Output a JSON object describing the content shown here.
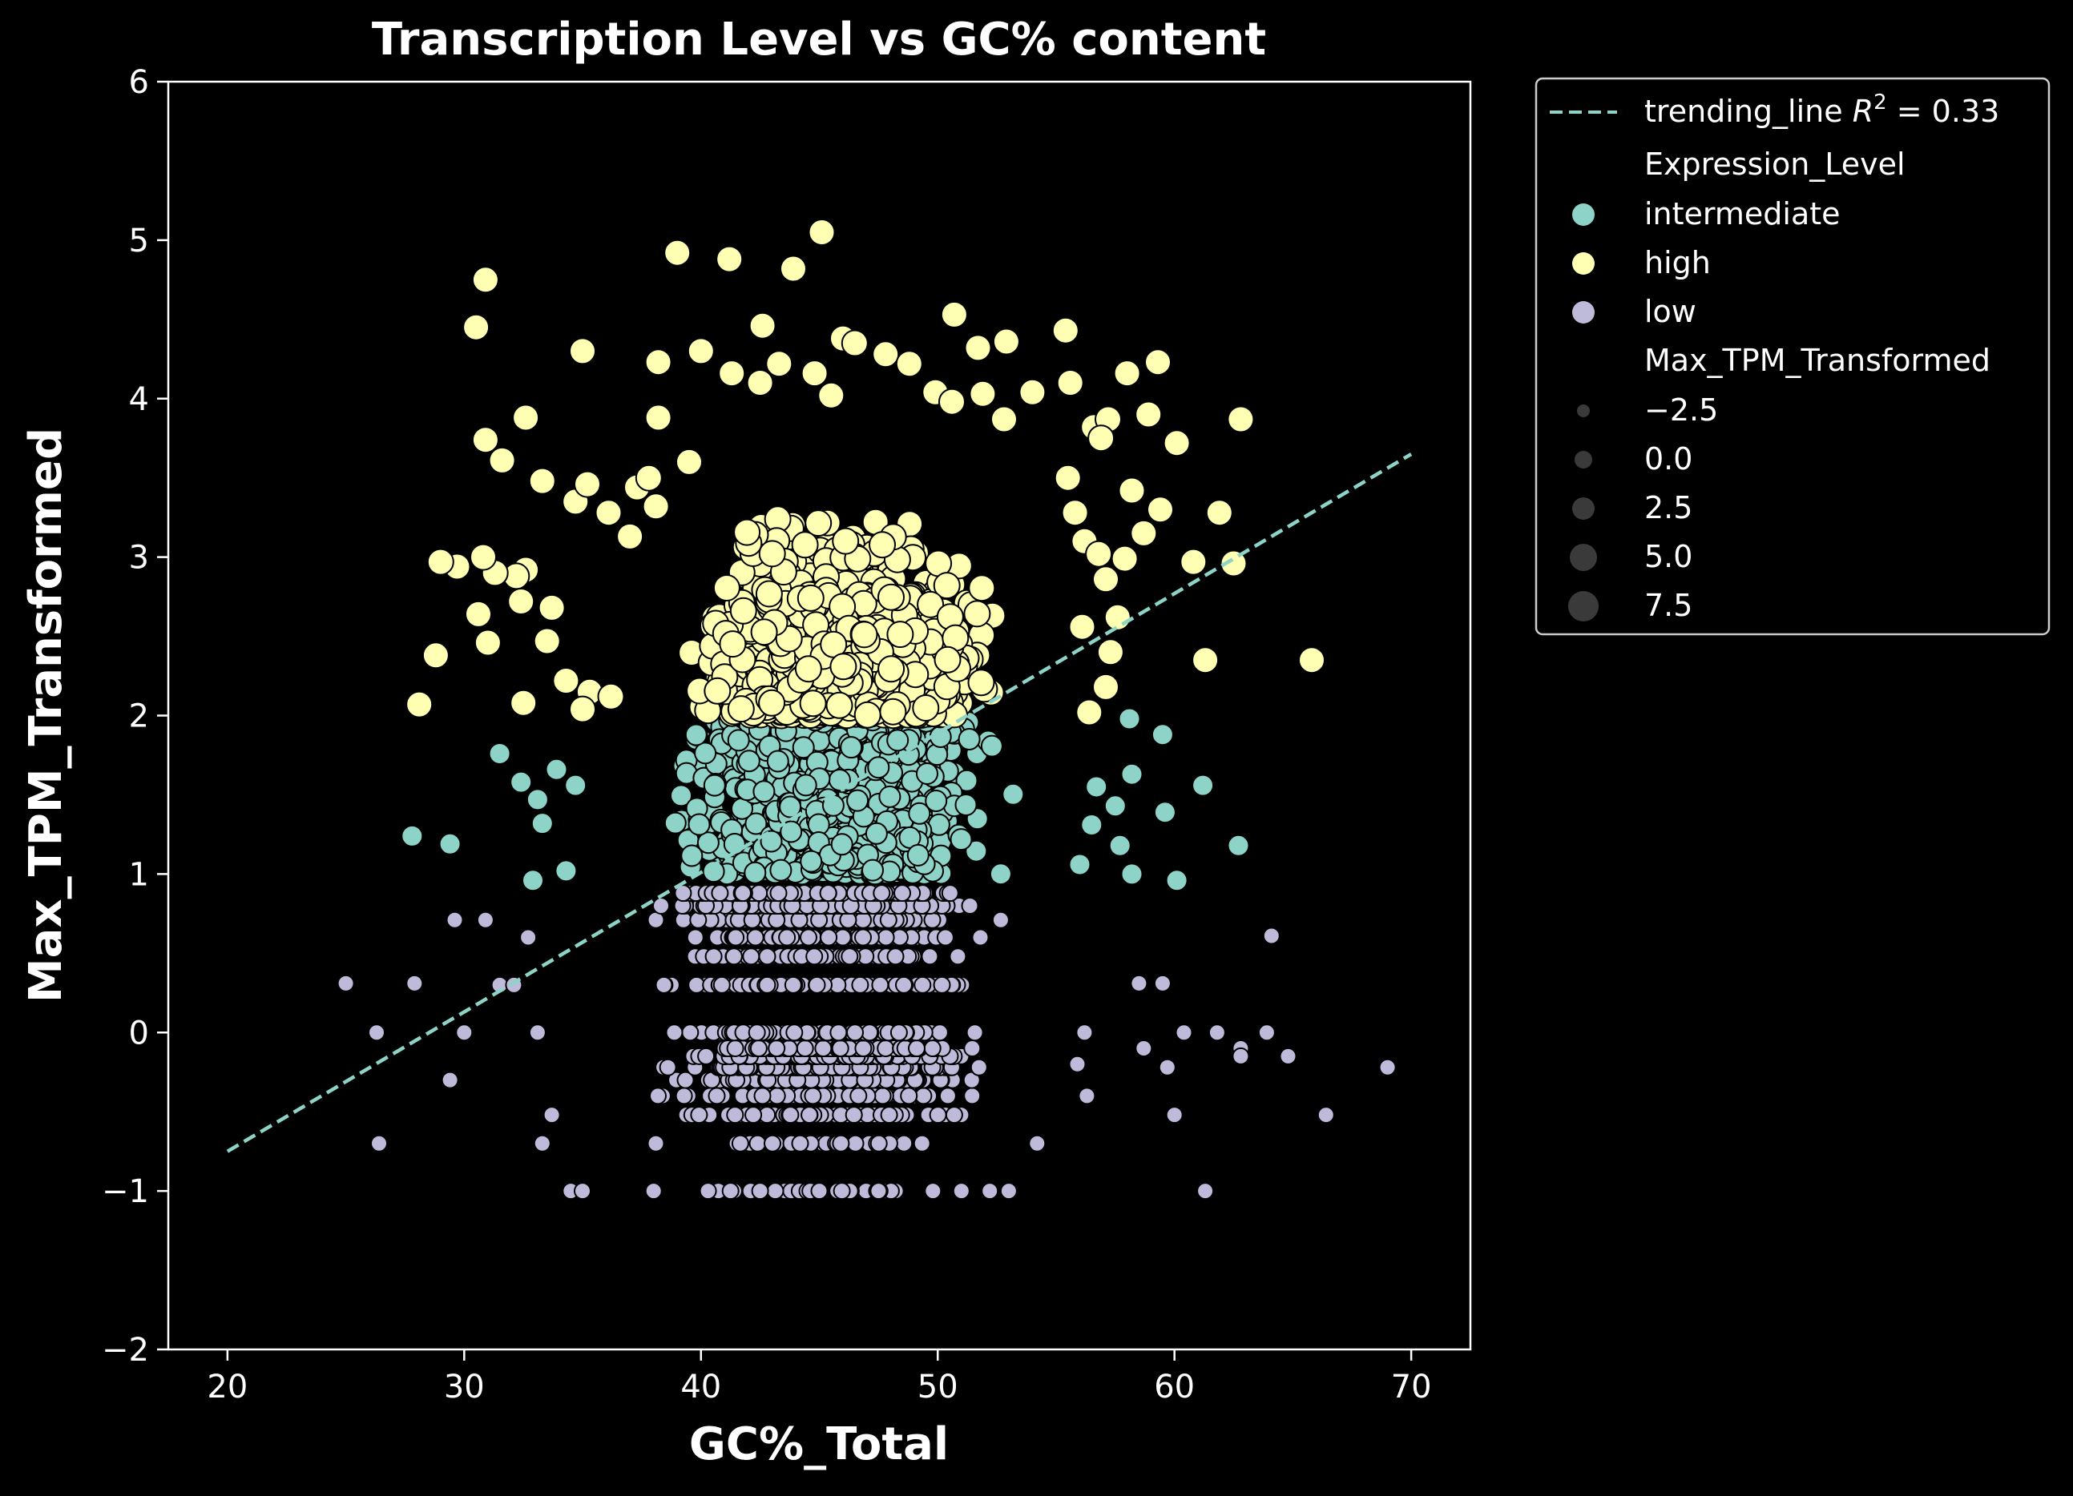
{
  "chart_data": {
    "type": "scatter",
    "title": "Transcription Level vs GC% content",
    "xlabel": "GC%_Total",
    "ylabel": "Max_TPM_Transformed",
    "xlim": [
      17.5,
      72.5
    ],
    "ylim": [
      -2,
      6
    ],
    "x_ticks": [
      20,
      30,
      40,
      50,
      60,
      70
    ],
    "y_ticks": [
      -2,
      -1,
      0,
      1,
      2,
      3,
      4,
      5,
      6
    ],
    "y_tick_labels": [
      "−2",
      "−1",
      "0",
      "1",
      "2",
      "3",
      "4",
      "5",
      "6"
    ],
    "grid": false,
    "legend_position": "outside-top-right",
    "colors": {
      "background": "#000000",
      "intermediate": "#8dd3c7",
      "high": "#ffffb3",
      "low": "#bebada",
      "trend": "#8dd3c7",
      "marker_edge": "#000000",
      "size_marker": "#3a3a3a"
    },
    "trend_line": {
      "label": "trending_line",
      "r2_label": "R",
      "r2_sup": "2",
      "r2_value": "= 0.33",
      "x": [
        20,
        70
      ],
      "y": [
        -0.75,
        3.65
      ],
      "style": "dashed"
    },
    "legend": {
      "hue_title": "Expression_Level",
      "hue_entries": [
        "intermediate",
        "high",
        "low"
      ],
      "size_title": "Max_TPM_Transformed",
      "size_entries": [
        "−2.5",
        "0.0",
        "2.5",
        "5.0",
        "7.5"
      ]
    },
    "series": [
      {
        "name": "high",
        "size": "large",
        "points": [
          [
            30.9,
            4.75
          ],
          [
            30.5,
            4.45
          ],
          [
            39,
            4.92
          ],
          [
            41.2,
            4.88
          ],
          [
            43.9,
            4.82
          ],
          [
            45.1,
            5.05
          ],
          [
            42.6,
            4.46
          ],
          [
            35,
            4.3
          ],
          [
            40,
            4.3
          ],
          [
            38.2,
            4.23
          ],
          [
            41.3,
            4.16
          ],
          [
            43.3,
            4.22
          ],
          [
            42.5,
            4.1
          ],
          [
            46,
            4.38
          ],
          [
            46.5,
            4.35
          ],
          [
            50.7,
            4.53
          ],
          [
            51.7,
            4.32
          ],
          [
            52.9,
            4.36
          ],
          [
            55.4,
            4.43
          ],
          [
            59.3,
            4.23
          ],
          [
            58,
            4.16
          ],
          [
            55.6,
            4.1
          ],
          [
            54,
            4.04
          ],
          [
            52.8,
            3.87
          ],
          [
            56.6,
            3.82
          ],
          [
            57.2,
            3.87
          ],
          [
            58.9,
            3.9
          ],
          [
            60.1,
            3.72
          ],
          [
            62.8,
            3.87
          ],
          [
            59.4,
            3.3
          ],
          [
            61.9,
            3.28
          ],
          [
            60.8,
            2.97
          ],
          [
            62.5,
            2.96
          ],
          [
            61.3,
            2.35
          ],
          [
            65.8,
            2.35
          ],
          [
            30.9,
            3.74
          ],
          [
            31.6,
            3.61
          ],
          [
            32.6,
            3.88
          ],
          [
            33.3,
            3.48
          ],
          [
            34.7,
            3.35
          ],
          [
            35.2,
            3.46
          ],
          [
            36.1,
            3.28
          ],
          [
            37.3,
            3.44
          ],
          [
            32.6,
            2.92
          ],
          [
            32.2,
            2.88
          ],
          [
            31.3,
            2.9
          ],
          [
            30.8,
            3
          ],
          [
            29.7,
            2.94
          ],
          [
            29,
            2.97
          ],
          [
            28.8,
            2.38
          ],
          [
            28.1,
            2.07
          ],
          [
            30.6,
            2.64
          ],
          [
            31,
            2.46
          ],
          [
            32.4,
            2.72
          ],
          [
            33.7,
            2.68
          ],
          [
            33.5,
            2.47
          ],
          [
            32.5,
            2.08
          ],
          [
            34.3,
            2.22
          ],
          [
            35.3,
            2.15
          ],
          [
            35,
            2.04
          ],
          [
            36.2,
            2.12
          ],
          [
            38.2,
            3.88
          ],
          [
            39.5,
            3.6
          ],
          [
            37.8,
            3.5
          ],
          [
            38.1,
            3.32
          ],
          [
            37,
            3.13
          ],
          [
            56.9,
            3.75
          ],
          [
            55.5,
            3.5
          ],
          [
            55.8,
            3.28
          ],
          [
            56.2,
            3.1
          ],
          [
            56.8,
            3.02
          ],
          [
            57.1,
            2.86
          ],
          [
            57.6,
            2.62
          ],
          [
            56.1,
            2.56
          ],
          [
            57.3,
            2.4
          ],
          [
            57.1,
            2.18
          ],
          [
            56.4,
            2.02
          ],
          [
            57.9,
            2.99
          ],
          [
            58.7,
            3.15
          ],
          [
            58.2,
            3.42
          ],
          [
            47.8,
            4.28
          ],
          [
            48.8,
            4.22
          ],
          [
            49.9,
            4.04
          ],
          [
            50.6,
            3.98
          ],
          [
            51.9,
            4.03
          ],
          [
            44.8,
            4.16
          ],
          [
            45.5,
            4.02
          ]
        ]
      },
      {
        "name": "intermediate",
        "size": "medium",
        "points": [
          [
            27.8,
            1.24
          ],
          [
            29.4,
            1.19
          ],
          [
            31.5,
            1.76
          ],
          [
            32.4,
            1.58
          ],
          [
            33.1,
            1.47
          ],
          [
            33.3,
            1.32
          ],
          [
            32.9,
            0.96
          ],
          [
            33.9,
            1.66
          ],
          [
            34.3,
            1.02
          ],
          [
            34.7,
            1.56
          ],
          [
            58.1,
            1.98
          ],
          [
            58.2,
            1.63
          ],
          [
            57.5,
            1.43
          ],
          [
            57.7,
            1.18
          ],
          [
            58.2,
            1
          ],
          [
            59.5,
            1.88
          ],
          [
            59.6,
            1.39
          ],
          [
            60.1,
            0.96
          ],
          [
            61.2,
            1.56
          ],
          [
            62.7,
            1.18
          ],
          [
            56.7,
            1.55
          ],
          [
            56.5,
            1.31
          ],
          [
            56,
            1.06
          ]
        ]
      },
      {
        "name": "low",
        "size": "small",
        "points": [
          [
            25,
            0.31
          ],
          [
            27.9,
            0.31
          ],
          [
            26.3,
            0
          ],
          [
            26.4,
            -0.7
          ],
          [
            29.6,
            0.71
          ],
          [
            29.4,
            -0.3
          ],
          [
            30,
            0
          ],
          [
            30.9,
            0.71
          ],
          [
            31.5,
            0.3
          ],
          [
            32.1,
            0.3
          ],
          [
            32.7,
            0.6
          ],
          [
            33.1,
            0
          ],
          [
            33.7,
            -0.52
          ],
          [
            33.3,
            -0.7
          ],
          [
            34.5,
            -1
          ],
          [
            35,
            -1
          ],
          [
            38,
            -1
          ],
          [
            40.3,
            -1
          ],
          [
            42.5,
            -1
          ],
          [
            45,
            -1
          ],
          [
            47.5,
            -1
          ],
          [
            49.8,
            -1
          ],
          [
            51,
            -1
          ],
          [
            52.2,
            -1
          ],
          [
            53,
            -1
          ],
          [
            61.3,
            -1
          ],
          [
            58.5,
            0.31
          ],
          [
            59.5,
            0.31
          ],
          [
            58.7,
            -0.1
          ],
          [
            59.7,
            -0.22
          ],
          [
            60,
            -0.52
          ],
          [
            60.4,
            0
          ],
          [
            61.8,
            0
          ],
          [
            62.8,
            -0.1
          ],
          [
            62.8,
            -0.15
          ],
          [
            63.9,
            0
          ],
          [
            64.1,
            0.61
          ],
          [
            64.8,
            -0.15
          ],
          [
            66.4,
            -0.52
          ],
          [
            69,
            -0.22
          ],
          [
            56.3,
            -0.4
          ],
          [
            54.2,
            -0.7
          ],
          [
            55.9,
            -0.2
          ],
          [
            56.2,
            0
          ]
        ]
      }
    ]
  }
}
